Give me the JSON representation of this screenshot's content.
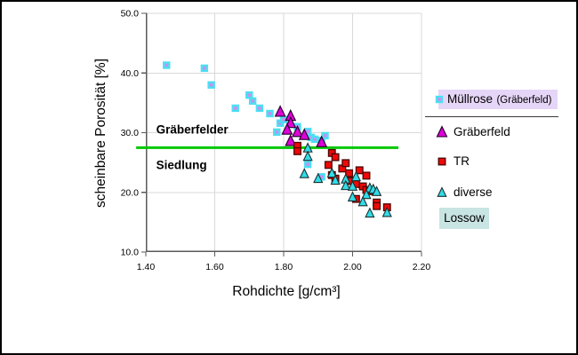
{
  "chart_data": {
    "type": "scatter",
    "xlabel": "Rohdichte [g/cm³]",
    "ylabel": "scheinbare Porosität [%]",
    "xlim": [
      1.4,
      2.2
    ],
    "ylim": [
      10.0,
      50.0
    ],
    "xticks": [
      1.4,
      1.6,
      1.8,
      2.0,
      2.2
    ],
    "xtick_labels": [
      "1.40",
      "1.60",
      "1.80",
      "2.00",
      "2.20"
    ],
    "yticks": [
      50.0,
      40.0,
      30.0,
      20.0,
      10.0
    ],
    "ytick_labels": [
      "50.0",
      "40.0",
      "30.0",
      "20.0",
      "10.0"
    ],
    "grid": true,
    "gridline_color": "#d9d9d9",
    "axis_color": "#5a5a5a",
    "annotations": [
      {
        "text": "Gräberfelder",
        "x": 1.43,
        "y": 30.5
      },
      {
        "text": "Siedlung",
        "x": 1.43,
        "y": 24.5
      }
    ],
    "threshold_line": {
      "y": 27.5,
      "x_start": 1.372,
      "x_end": 2.133,
      "color": "#00c800"
    },
    "series": [
      {
        "name": "Müllrose (Gräberfeld)",
        "marker": "square",
        "fill": "#c98ff0",
        "stroke": "#4bdff2",
        "size": 6,
        "stroke_width": 2.4,
        "points": [
          [
            1.46,
            41.3
          ],
          [
            1.57,
            40.8
          ],
          [
            1.59,
            38.0
          ],
          [
            1.7,
            36.3
          ],
          [
            1.71,
            35.3
          ],
          [
            1.66,
            34.1
          ],
          [
            1.73,
            34.1
          ],
          [
            1.76,
            33.2
          ],
          [
            1.79,
            31.6
          ],
          [
            1.8,
            32.2
          ],
          [
            1.78,
            30.1
          ],
          [
            1.84,
            31.0
          ],
          [
            1.87,
            30.2
          ],
          [
            1.88,
            29.2
          ],
          [
            1.89,
            28.9
          ],
          [
            1.91,
            28.7
          ],
          [
            1.92,
            29.5
          ],
          [
            1.87,
            24.7
          ],
          [
            1.91,
            22.6
          ]
        ]
      },
      {
        "name": "Gräberfeld",
        "marker": "triangle",
        "fill": "#e001d9",
        "stroke": "#2b0030",
        "size": 11,
        "stroke_width": 1.2,
        "points": [
          [
            1.79,
            33.5
          ],
          [
            1.82,
            32.8
          ],
          [
            1.82,
            31.6
          ],
          [
            1.81,
            30.5
          ],
          [
            1.84,
            30.1
          ],
          [
            1.86,
            29.6
          ],
          [
            1.82,
            28.6
          ],
          [
            1.91,
            28.4
          ]
        ]
      },
      {
        "name": "TR",
        "marker": "square",
        "fill": "#ee0808",
        "stroke": "#4a0505",
        "size": 7.6,
        "stroke_width": 1.3,
        "points": [
          [
            1.84,
            27.8
          ],
          [
            1.84,
            26.9
          ],
          [
            1.94,
            26.6
          ],
          [
            1.95,
            25.9
          ],
          [
            1.93,
            24.6
          ],
          [
            1.97,
            24.0
          ],
          [
            1.98,
            24.9
          ],
          [
            1.99,
            23.2
          ],
          [
            1.94,
            22.9
          ],
          [
            1.95,
            22.3
          ],
          [
            2.02,
            23.7
          ],
          [
            2.04,
            22.8
          ],
          [
            1.99,
            21.9
          ],
          [
            2.01,
            21.4
          ],
          [
            2.03,
            21.0
          ],
          [
            2.04,
            20.4
          ],
          [
            2.05,
            20.2
          ],
          [
            2.01,
            18.9
          ],
          [
            2.07,
            18.3
          ],
          [
            2.07,
            17.7
          ],
          [
            2.1,
            17.5
          ]
        ]
      },
      {
        "name": "diverse",
        "marker": "triangle",
        "fill": "#31dce8",
        "stroke": "#1c3030",
        "size": 9.5,
        "stroke_width": 1.1,
        "points": [
          [
            1.87,
            27.4
          ],
          [
            1.87,
            26.0
          ],
          [
            1.86,
            23.1
          ],
          [
            1.9,
            22.3
          ],
          [
            1.94,
            23.2
          ],
          [
            1.95,
            22.0
          ],
          [
            1.98,
            22.2
          ],
          [
            1.98,
            21.1
          ],
          [
            2.01,
            22.6
          ],
          [
            2.0,
            21.0
          ],
          [
            2.05,
            20.7
          ],
          [
            2.06,
            20.5
          ],
          [
            2.07,
            20.1
          ],
          [
            2.04,
            19.6
          ],
          [
            2.0,
            19.2
          ],
          [
            2.03,
            18.4
          ],
          [
            2.1,
            16.6
          ],
          [
            2.05,
            16.5
          ]
        ]
      }
    ]
  },
  "legend": {
    "items": [
      {
        "label": "Müllrose",
        "suffix": "(Gräberfeld)",
        "highlight": "#e5d5f6"
      },
      {
        "label": "Gräberfeld"
      },
      {
        "label": "TR"
      },
      {
        "label": "diverse"
      }
    ],
    "footer": {
      "label": "Lossow",
      "highlight": "#c8e4e3"
    }
  }
}
